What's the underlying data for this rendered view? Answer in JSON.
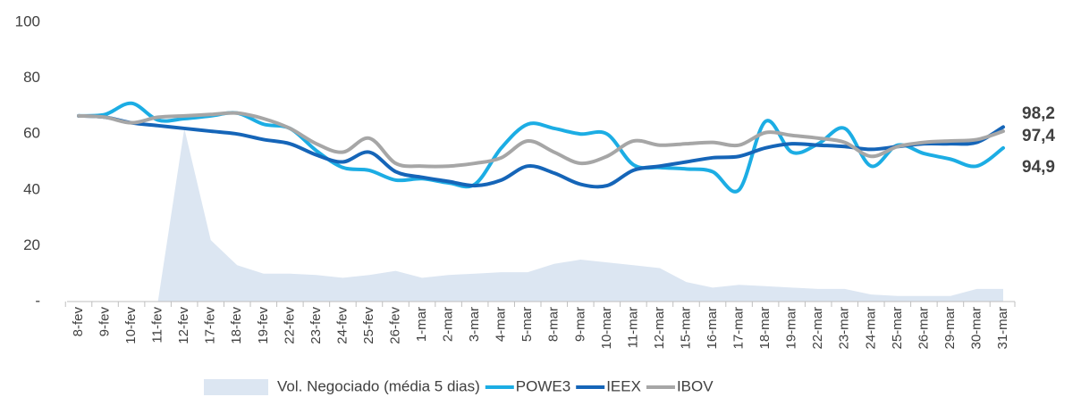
{
  "chart_data": {
    "type": "line",
    "categories": [
      "8-fev",
      "9-fev",
      "10-fev",
      "11-fev",
      "12-fev",
      "17-fev",
      "18-fev",
      "19-fev",
      "22-fev",
      "23-fev",
      "24-fev",
      "25-fev",
      "26-fev",
      "1-mar",
      "2-mar",
      "3-mar",
      "4-mar",
      "5-mar",
      "8-mar",
      "9-mar",
      "10-mar",
      "11-mar",
      "12-mar",
      "15-mar",
      "16-mar",
      "17-mar",
      "18-mar",
      "19-mar",
      "22-mar",
      "23-mar",
      "24-mar",
      "25-mar",
      "26-mar",
      "29-mar",
      "30-mar",
      "31-mar"
    ],
    "ylim": [
      0,
      100
    ],
    "yticks": [
      {
        "value": 0,
        "label": "-"
      },
      20,
      40,
      60,
      80,
      100
    ],
    "grid": false,
    "legend": "bottom",
    "series": [
      {
        "name": "Vol. Negociado (média 5 dias)",
        "kind": "area",
        "color": "#dce6f2",
        "values": [
          0,
          0,
          0,
          0,
          62,
          22,
          13,
          10,
          10,
          9.5,
          8.5,
          9.5,
          11,
          8.5,
          9.5,
          10,
          10.5,
          10.5,
          13.5,
          15,
          14,
          13,
          12,
          7,
          5,
          6,
          5.5,
          5,
          4.5,
          4.5,
          2.5,
          2,
          2,
          2,
          4.5,
          4.5
        ]
      },
      {
        "name": "POWE3",
        "kind": "line",
        "color": "#1cade4",
        "end_label": "94,9",
        "values": [
          66.5,
          67,
          71,
          65,
          65.5,
          66.5,
          67.5,
          63.5,
          62,
          54,
          48,
          47,
          43.5,
          44,
          42.5,
          42,
          55,
          63.5,
          62,
          60,
          60,
          49,
          48,
          47.5,
          46.5,
          40,
          64.5,
          53.5,
          56.5,
          62,
          48.5,
          56,
          53,
          51,
          48.5,
          55
        ]
      },
      {
        "name": "IEEX",
        "kind": "line",
        "color": "#1565b8",
        "end_label": "98,2",
        "label_color": "#1a6fa3",
        "values": [
          66.5,
          66,
          64,
          63,
          62,
          61,
          60,
          58,
          56.5,
          52.5,
          50,
          53.5,
          46.5,
          44.5,
          43,
          41.5,
          43.5,
          48.5,
          46,
          42,
          41.5,
          47,
          48.5,
          50,
          51.5,
          52,
          55,
          56.5,
          56,
          55.5,
          54.5,
          55.5,
          56.5,
          56.5,
          57,
          62.5
        ]
      },
      {
        "name": "IBOV",
        "kind": "line",
        "color": "#a6a6a6",
        "end_label": "97,4",
        "label_color": "#7f7f7f",
        "values": [
          66.5,
          66,
          64,
          66,
          66.5,
          67,
          67.5,
          65.5,
          62,
          56.5,
          53.5,
          58.5,
          49.5,
          48.5,
          48.5,
          49.5,
          51.5,
          57.5,
          53.5,
          49.5,
          52,
          57.5,
          56,
          56.5,
          57,
          56,
          60.5,
          59.5,
          58.5,
          57,
          52,
          55.5,
          57,
          57.5,
          58,
          61
        ]
      }
    ]
  }
}
